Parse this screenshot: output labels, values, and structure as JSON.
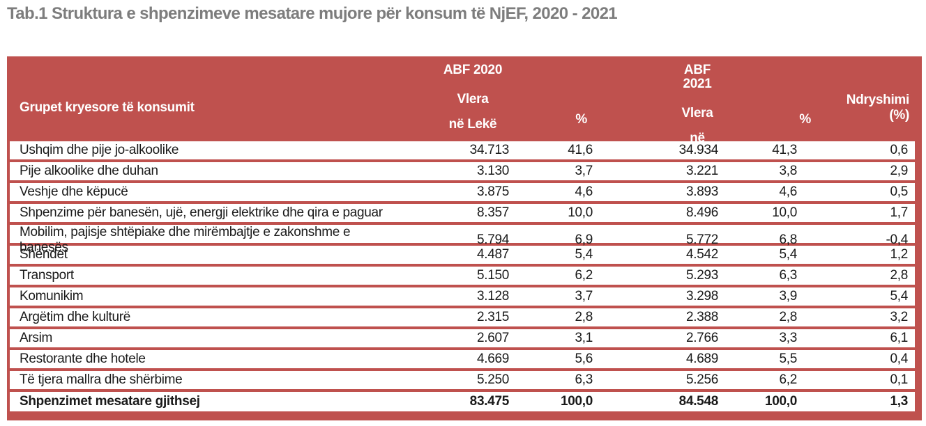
{
  "title": "Tab.1 Struktura e shpenzimeve mesatare mujore për konsum të NjEF, 2020 - 2021",
  "colors": {
    "accent_red": "#BF514E",
    "title_gray": "#7D7D7D",
    "header_text": "#FFFFFF",
    "body_text": "#1A1A1A"
  },
  "table": {
    "header": {
      "group_col": "Grupet kryesore të konsumit",
      "abf2020": "ABF 2020",
      "abf2021": "ABF 2021",
      "vlera_line1": "Vlera",
      "vlera_line2": "në Lekë",
      "pct": "%",
      "ndryshimi_line1": "Ndryshimi",
      "ndryshimi_line2": "(%)"
    },
    "rows": [
      {
        "label": "Ushqim dhe pije jo-alkoolike",
        "v2020": "34.713",
        "p2020": "41,6",
        "v2021": "34.934",
        "p2021": "41,3",
        "ndr": "0,6"
      },
      {
        "label": "Pije alkoolike dhe duhan",
        "v2020": "3.130",
        "p2020": "3,7",
        "v2021": "3.221",
        "p2021": "3,8",
        "ndr": "2,9"
      },
      {
        "label": "Veshje dhe këpucë",
        "v2020": "3.875",
        "p2020": "4,6",
        "v2021": "3.893",
        "p2021": "4,6",
        "ndr": "0,5"
      },
      {
        "label": "Shpenzime për banesën, ujë, energji elektrike dhe qira e paguar",
        "v2020": "8.357",
        "p2020": "10,0",
        "v2021": "8.496",
        "p2021": "10,0",
        "ndr": "1,7"
      },
      {
        "label": "Mobilim, pajisje shtëpiake dhe mirëmbajtje e zakonshme e banesës",
        "v2020": "5.794",
        "p2020": "6,9",
        "v2021": "5.772",
        "p2021": "6,8",
        "ndr": "-0,4"
      },
      {
        "label": "Shëndet",
        "v2020": "4.487",
        "p2020": "5,4",
        "v2021": "4.542",
        "p2021": "5,4",
        "ndr": "1,2"
      },
      {
        "label": "Transport",
        "v2020": "5.150",
        "p2020": "6,2",
        "v2021": "5.293",
        "p2021": "6,3",
        "ndr": "2,8"
      },
      {
        "label": "Komunikim",
        "v2020": "3.128",
        "p2020": "3,7",
        "v2021": "3.298",
        "p2021": "3,9",
        "ndr": "5,4"
      },
      {
        "label": "Argëtim dhe kulturë",
        "v2020": "2.315",
        "p2020": "2,8",
        "v2021": "2.388",
        "p2021": "2,8",
        "ndr": "3,2"
      },
      {
        "label": "Arsim",
        "v2020": "2.607",
        "p2020": "3,1",
        "v2021": "2.766",
        "p2021": "3,3",
        "ndr": "6,1"
      },
      {
        "label": "Restorante dhe hotele",
        "v2020": "4.669",
        "p2020": "5,6",
        "v2021": "4.689",
        "p2021": "5,5",
        "ndr": "0,4"
      },
      {
        "label": "Të tjera mallra dhe shërbime",
        "v2020": "5.250",
        "p2020": "6,3",
        "v2021": "5.256",
        "p2021": "6,2",
        "ndr": "0,1"
      }
    ],
    "total": {
      "label": "Shpenzimet mesatare gjithsej",
      "v2020": "83.475",
      "p2020": "100,0",
      "v2021": "84.548",
      "p2021": "100,0",
      "ndr": "1,3"
    }
  }
}
